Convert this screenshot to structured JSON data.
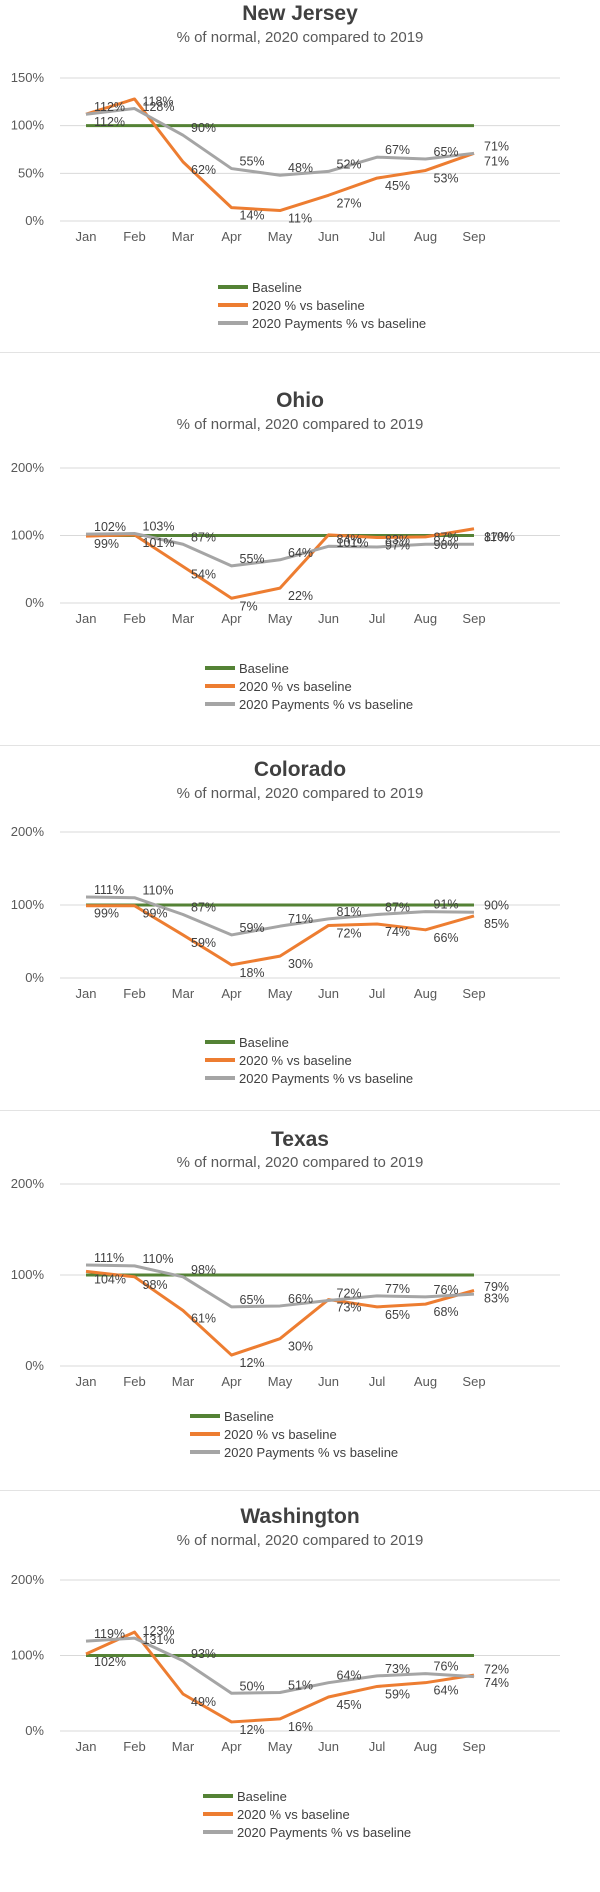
{
  "legend": {
    "baseline": "Baseline",
    "pct2020": "2020 % vs baseline",
    "payments": "2020 Payments % vs baseline"
  },
  "colors": {
    "baseline": "#548235",
    "pct2020": "#ED7D31",
    "payments": "#A5A5A5",
    "grid": "#D9D9D9"
  },
  "chart_data": [
    {
      "type": "line",
      "title": "New Jersey",
      "subtitle": "% of normal, 2020 compared to 2019",
      "categories": [
        "Jan",
        "Feb",
        "Mar",
        "Apr",
        "May",
        "Jun",
        "Jul",
        "Aug",
        "Sep"
      ],
      "ylim": [
        0,
        150
      ],
      "yticks": [
        0,
        50,
        100,
        150
      ],
      "ytick_labels": [
        "0%",
        "50%",
        "100%",
        "150%"
      ],
      "grid": true,
      "legend_position": "bottom",
      "series": [
        {
          "name": "Baseline",
          "values": [
            100,
            100,
            100,
            100,
            100,
            100,
            100,
            100,
            100
          ],
          "labels": [
            "",
            "",
            "",
            "",
            "",
            "",
            "",
            "",
            ""
          ]
        },
        {
          "name": "2020 % vs baseline",
          "values": [
            112,
            128,
            62,
            14,
            11,
            27,
            45,
            53,
            71
          ],
          "labels": [
            "112%",
            "128%",
            "62%",
            "14%",
            "11%",
            "27%",
            "45%",
            "53%",
            "71%"
          ]
        },
        {
          "name": "2020 Payments % vs baseline",
          "values": [
            112,
            118,
            90,
            55,
            48,
            52,
            67,
            65,
            71
          ],
          "labels": [
            "112%",
            "118%",
            "90%",
            "55%",
            "48%",
            "52%",
            "67%",
            "65%",
            "71%"
          ]
        }
      ]
    },
    {
      "type": "line",
      "title": "Ohio",
      "subtitle": "% of normal, 2020 compared to 2019",
      "categories": [
        "Jan",
        "Feb",
        "Mar",
        "Apr",
        "May",
        "Jun",
        "Jul",
        "Aug",
        "Sep"
      ],
      "ylim": [
        0,
        200
      ],
      "yticks": [
        0,
        100,
        200
      ],
      "ytick_labels": [
        "0%",
        "100%",
        "200%"
      ],
      "grid": true,
      "legend_position": "bottom",
      "series": [
        {
          "name": "Baseline",
          "values": [
            100,
            100,
            100,
            100,
            100,
            100,
            100,
            100,
            100
          ],
          "labels": [
            "",
            "",
            "",
            "",
            "",
            "",
            "",
            "",
            ""
          ]
        },
        {
          "name": "2020 % vs baseline",
          "values": [
            99,
            101,
            54,
            7,
            22,
            101,
            97,
            98,
            110
          ],
          "labels": [
            "99%",
            "101%",
            "54%",
            "7%",
            "22%",
            "101%",
            "97%",
            "98%",
            "110%"
          ]
        },
        {
          "name": "2020 Payments % vs baseline",
          "values": [
            102,
            103,
            87,
            55,
            64,
            84,
            83,
            87,
            87
          ],
          "labels": [
            "102%",
            "103%",
            "87%",
            "55%",
            "64%",
            "84%",
            "83%",
            "87%",
            "87%"
          ]
        }
      ]
    },
    {
      "type": "line",
      "title": "Colorado",
      "subtitle": "% of normal, 2020 compared to 2019",
      "categories": [
        "Jan",
        "Feb",
        "Mar",
        "Apr",
        "May",
        "Jun",
        "Jul",
        "Aug",
        "Sep"
      ],
      "ylim": [
        0,
        200
      ],
      "yticks": [
        0,
        100,
        200
      ],
      "ytick_labels": [
        "0%",
        "100%",
        "200%"
      ],
      "grid": true,
      "legend_position": "bottom",
      "series": [
        {
          "name": "Baseline",
          "values": [
            100,
            100,
            100,
            100,
            100,
            100,
            100,
            100,
            100
          ],
          "labels": [
            "",
            "",
            "",
            "",
            "",
            "",
            "",
            "",
            ""
          ]
        },
        {
          "name": "2020 % vs baseline",
          "values": [
            99,
            99,
            59,
            18,
            30,
            72,
            74,
            66,
            85
          ],
          "labels": [
            "99%",
            "99%",
            "59%",
            "18%",
            "30%",
            "72%",
            "74%",
            "66%",
            "85%"
          ]
        },
        {
          "name": "2020 Payments % vs baseline",
          "values": [
            111,
            110,
            87,
            59,
            71,
            81,
            87,
            91,
            90
          ],
          "labels": [
            "111%",
            "110%",
            "87%",
            "59%",
            "71%",
            "81%",
            "87%",
            "91%",
            "90%"
          ]
        }
      ]
    },
    {
      "type": "line",
      "title": "Texas",
      "subtitle": "% of normal, 2020 compared to 2019",
      "categories": [
        "Jan",
        "Feb",
        "Mar",
        "Apr",
        "May",
        "Jun",
        "Jul",
        "Aug",
        "Sep"
      ],
      "ylim": [
        0,
        200
      ],
      "yticks": [
        0,
        100,
        200
      ],
      "ytick_labels": [
        "0%",
        "100%",
        "200%"
      ],
      "grid": true,
      "legend_position": "bottom",
      "series": [
        {
          "name": "Baseline",
          "values": [
            100,
            100,
            100,
            100,
            100,
            100,
            100,
            100,
            100
          ],
          "labels": [
            "",
            "",
            "",
            "",
            "",
            "",
            "",
            "",
            ""
          ]
        },
        {
          "name": "2020 % vs baseline",
          "values": [
            104,
            98,
            61,
            12,
            30,
            73,
            65,
            68,
            83
          ],
          "labels": [
            "104%",
            "98%",
            "61%",
            "12%",
            "30%",
            "73%",
            "65%",
            "68%",
            "83%"
          ]
        },
        {
          "name": "2020 Payments % vs baseline",
          "values": [
            111,
            110,
            98,
            65,
            66,
            72,
            77,
            76,
            79
          ],
          "labels": [
            "111%",
            "110%",
            "98%",
            "65%",
            "66%",
            "72%",
            "77%",
            "76%",
            "79%"
          ]
        }
      ]
    },
    {
      "type": "line",
      "title": "Washington",
      "subtitle": "% of normal, 2020 compared to 2019",
      "categories": [
        "Jan",
        "Feb",
        "Mar",
        "Apr",
        "May",
        "Jun",
        "Jul",
        "Aug",
        "Sep"
      ],
      "ylim": [
        0,
        200
      ],
      "yticks": [
        0,
        100,
        200
      ],
      "ytick_labels": [
        "0%",
        "100%",
        "200%"
      ],
      "grid": true,
      "legend_position": "bottom",
      "series": [
        {
          "name": "Baseline",
          "values": [
            100,
            100,
            100,
            100,
            100,
            100,
            100,
            100,
            100
          ],
          "labels": [
            "",
            "",
            "",
            "",
            "",
            "",
            "",
            "",
            ""
          ]
        },
        {
          "name": "2020 % vs baseline",
          "values": [
            102,
            131,
            49,
            12,
            16,
            45,
            59,
            64,
            74
          ],
          "labels": [
            "102%",
            "131%",
            "49%",
            "12%",
            "16%",
            "45%",
            "59%",
            "64%",
            "74%"
          ]
        },
        {
          "name": "2020 Payments % vs baseline",
          "values": [
            119,
            123,
            93,
            50,
            51,
            64,
            73,
            76,
            72
          ],
          "labels": [
            "119%",
            "123%",
            "93%",
            "50%",
            "51%",
            "64%",
            "73%",
            "76%",
            "72%"
          ]
        }
      ]
    }
  ]
}
